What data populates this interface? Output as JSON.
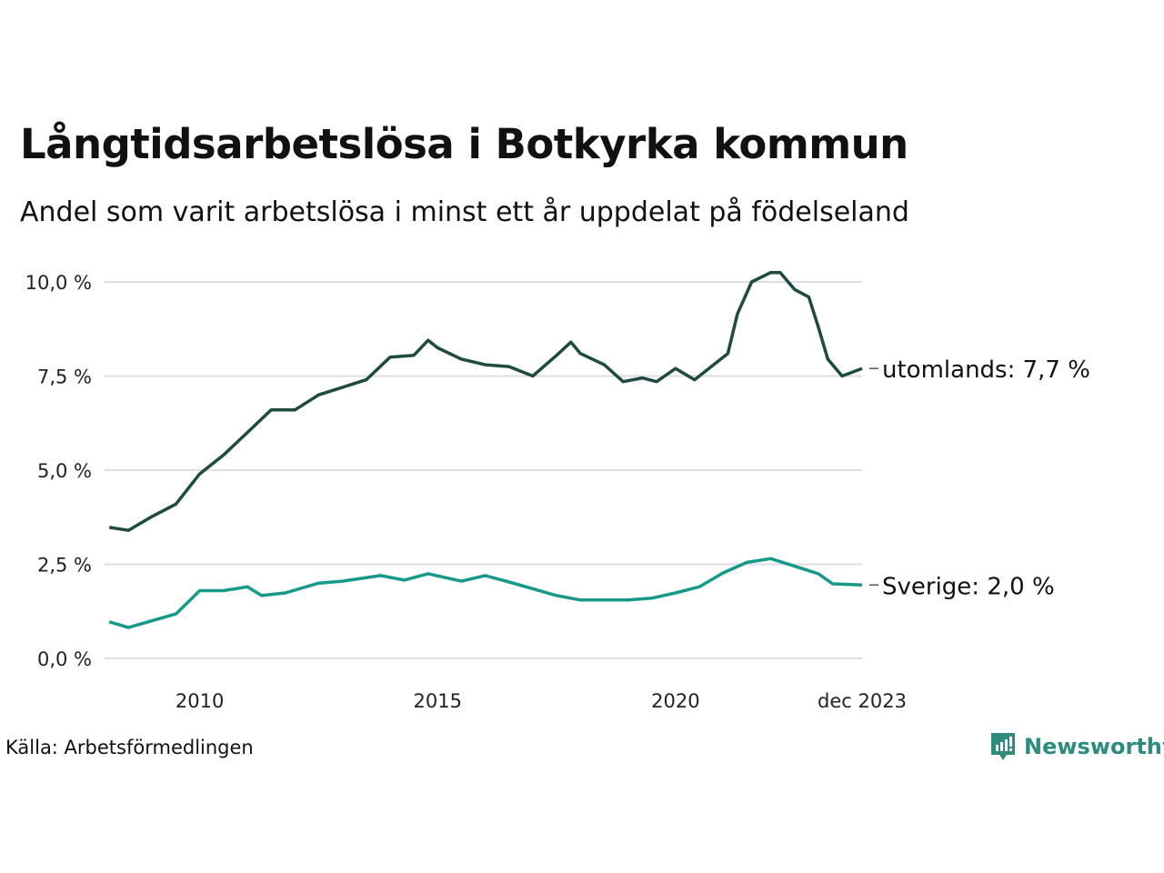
{
  "chart_data": {
    "type": "line",
    "title": "Långtidsarbetslösa i Botkyrka kommun",
    "subtitle": "Andel som varit arbetslösa i minst ett år uppdelat på födelseland",
    "xlabel": "",
    "ylabel": "",
    "ylim": [
      0,
      10
    ],
    "xlim": [
      2008.0,
      2023.92
    ],
    "grid": true,
    "y_ticks": [
      0,
      2.5,
      5,
      7.5,
      10
    ],
    "y_tick_labels": [
      "0,0 %",
      "2,5 %",
      "5,0 %",
      "7,5 %",
      "10,0 %"
    ],
    "x_ticks": [
      2010,
      2015,
      2020,
      2023.92
    ],
    "x_tick_labels": [
      "2010",
      "2015",
      "2020",
      "dec 2023"
    ],
    "series": [
      {
        "name": "utomlands",
        "label": "utomlands: 7,7 %",
        "color": "#1f4a40",
        "x": [
          2008.1,
          2008.5,
          2009,
          2009.5,
          2010,
          2010.5,
          2011,
          2011.5,
          2012,
          2012.5,
          2013,
          2013.5,
          2014,
          2014.5,
          2014.8,
          2015,
          2015.5,
          2016,
          2016.5,
          2017,
          2017.5,
          2017.8,
          2018,
          2018.5,
          2018.9,
          2019.3,
          2019.6,
          2020,
          2020.4,
          2020.8,
          2021.1,
          2021.3,
          2021.6,
          2022,
          2022.2,
          2022.5,
          2022.8,
          2023.0,
          2023.2,
          2023.5,
          2023.92
        ],
        "values": [
          3.48,
          3.4,
          3.77,
          4.1,
          4.9,
          5.4,
          6.0,
          6.6,
          6.6,
          7.0,
          7.2,
          7.4,
          8.0,
          8.05,
          8.45,
          8.25,
          7.95,
          7.8,
          7.75,
          7.5,
          8.05,
          8.4,
          8.1,
          7.8,
          7.35,
          7.45,
          7.35,
          7.7,
          7.4,
          7.8,
          8.1,
          9.15,
          10.0,
          10.25,
          10.25,
          9.8,
          9.6,
          8.8,
          7.95,
          7.5,
          7.7
        ]
      },
      {
        "name": "Sverige",
        "label": "Sverige: 2,0 %",
        "color": "#17998a",
        "x": [
          2008.1,
          2008.5,
          2009,
          2009.5,
          2010,
          2010.5,
          2011,
          2011.3,
          2011.8,
          2012.5,
          2013,
          2013.8,
          2014.3,
          2014.8,
          2015.5,
          2016,
          2016.5,
          2017,
          2017.5,
          2018,
          2018.5,
          2019,
          2019.5,
          2020,
          2020.5,
          2021,
          2021.5,
          2022,
          2022.5,
          2023,
          2023.3,
          2023.92
        ],
        "values": [
          0.97,
          0.82,
          1.0,
          1.18,
          1.8,
          1.8,
          1.9,
          1.67,
          1.74,
          2.0,
          2.05,
          2.2,
          2.08,
          2.25,
          2.05,
          2.2,
          2.03,
          1.85,
          1.67,
          1.55,
          1.55,
          1.55,
          1.6,
          1.74,
          1.9,
          2.27,
          2.55,
          2.65,
          2.45,
          2.25,
          1.98,
          1.95
        ]
      }
    ]
  },
  "source": "Källa: Arbetsförmedlingen",
  "logo": {
    "text": "Newsworthy",
    "color": "#2e8b7d"
  },
  "colors": {
    "grid": "#dddde3"
  }
}
